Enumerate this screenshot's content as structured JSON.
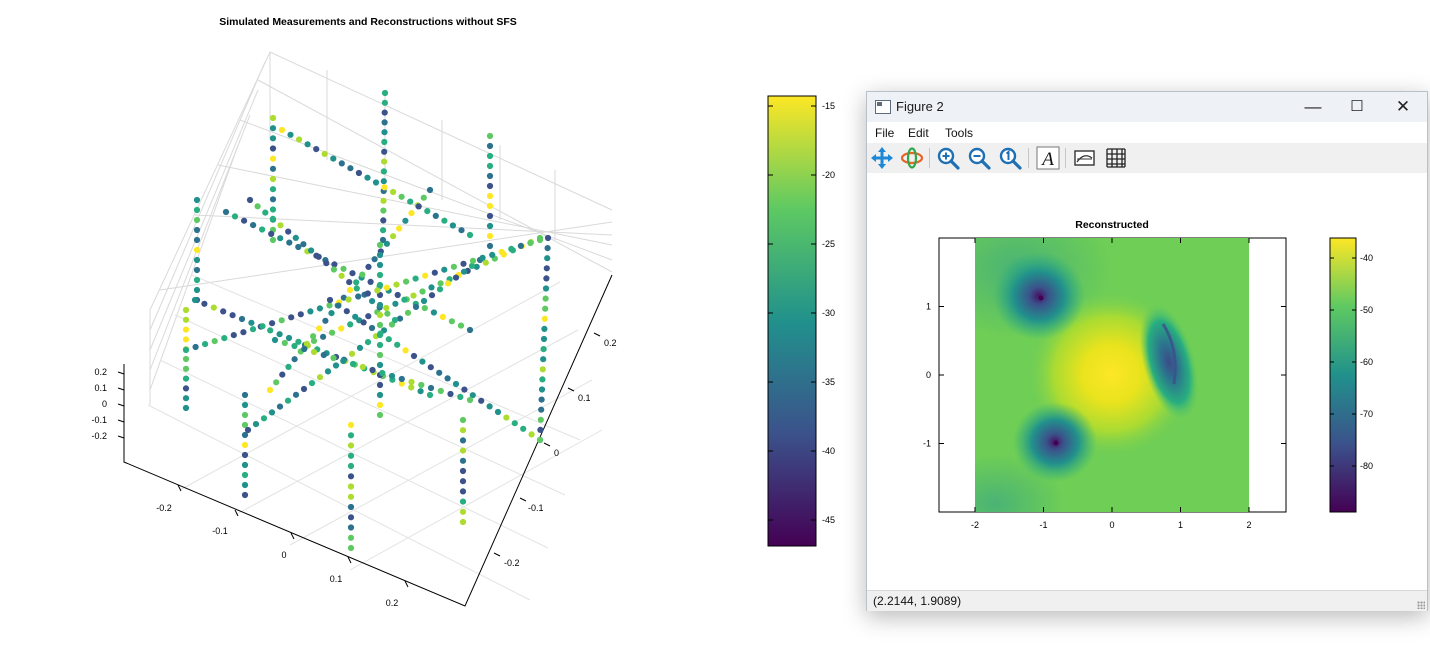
{
  "main_plot": {
    "title": "Simulated Measurements and Reconstructions without SFS",
    "z_ticks": [
      "0.2",
      "0.1",
      "0",
      "-0.1",
      "-0.2"
    ],
    "x_ticks": [
      "-0.2",
      "-0.1",
      "0",
      "0.1",
      "0.2"
    ],
    "y_ticks": [
      "0.2",
      "0.1",
      "0",
      "-0.1",
      "-0.2"
    ],
    "colorbar_ticks": [
      "-15",
      "-20",
      "-25",
      "-30",
      "-35",
      "-40",
      "-45"
    ],
    "colormap": "viridis"
  },
  "figure_window": {
    "title": "Figure 2",
    "controls": {
      "minimize": "—",
      "maximize": "☐",
      "close": "✕"
    },
    "menu": [
      "File",
      "Edit",
      "Tools"
    ],
    "toolbar_icons": [
      "pan-icon",
      "rotate-icon",
      "zoom-in-icon",
      "zoom-out-icon",
      "zoom-reset-icon",
      "text-icon",
      "axes-icon",
      "grid-icon"
    ],
    "status": "(2.2144, 1.9089)"
  },
  "chart_data": {
    "type": "heatmap",
    "title": "Reconstructed",
    "xlabel": "",
    "ylabel": "",
    "x_ticks": [
      "-2",
      "-1",
      "0",
      "1",
      "2"
    ],
    "y_ticks": [
      "1",
      "0",
      "-1"
    ],
    "xlim": [
      -2.5,
      2.5
    ],
    "ylim": [
      -2,
      2
    ],
    "colorbar_ticks": [
      "-40",
      "-50",
      "-60",
      "-70",
      "-80"
    ],
    "colorbar_range": [
      -89,
      -36
    ],
    "colormap": "viridis"
  },
  "colors": {
    "viridis_high": "#fde725",
    "viridis_mid": "#21918c",
    "viridis_low": "#440154",
    "window_border": "#b9c0c8"
  }
}
